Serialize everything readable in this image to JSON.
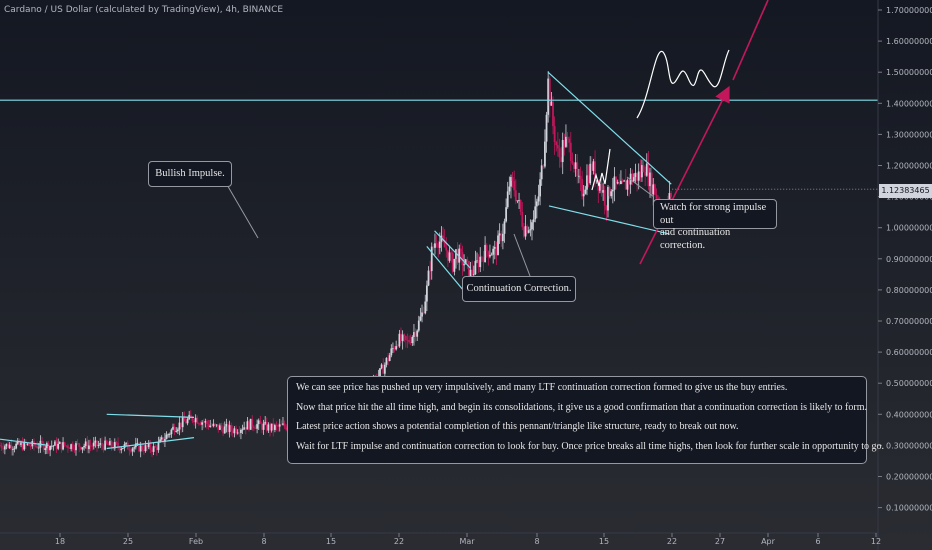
{
  "header": {
    "title": "Cardano / US Dollar (calculated by TradingView), 4h, BINANCE"
  },
  "price_label": "1.12383465",
  "annotations": {
    "bullish_impulse": "Bullish Impulse.",
    "continuation_correction": "Continuation Correction.",
    "watch": [
      "Watch for strong impulse out",
      "and continuation correction."
    ]
  },
  "note": {
    "lines": [
      "We can see price has pushed up very impulsively, and many LTF continuation correction formed to  give us the buy entries.",
      "Now that price hit the all time high, and begin its consolidations, it give us a good confirmation that a continuation correction is likely to form.",
      "Latest price action shows a potential  completion of this pennant/triangle like structure, ready to break out now.",
      "Wait for LTF impulse and continuation correction to look for buy. Once price breaks all time highs, then look for further scale in opportunity to go."
    ]
  },
  "colors": {
    "background": "#131722",
    "up_candle": "#d1d4dc",
    "down_candle": "#c2185b",
    "trendline": "#80deea",
    "axis_text": "#b2b5be",
    "projection_arrow": "#c2185b"
  },
  "chart_data": {
    "type": "candlestick",
    "title": "Cardano / US Dollar (calculated by TradingView), 4h, BINANCE",
    "y_ticks": [
      "1.70000000",
      "1.60000000",
      "1.50000000",
      "1.40000000",
      "1.30000000",
      "1.20000000",
      "1.10000000",
      "1.00000000",
      "0.90000000",
      "0.80000000",
      "0.70000000",
      "0.60000000",
      "0.50000000",
      "0.40000000",
      "0.30000000",
      "0.20000000",
      "0.10000000"
    ],
    "x_ticks": [
      "18",
      "25",
      "Feb",
      "8",
      "15",
      "22",
      "Mar",
      "8",
      "15",
      "22",
      "27",
      "Apr",
      "6",
      "12"
    ],
    "ylim": [
      0.05,
      1.75
    ],
    "last_price": 1.12383465,
    "horizontal_level": 1.41,
    "close_path": [
      [
        11,
        0.3
      ],
      [
        16,
        0.29
      ],
      [
        18,
        0.36
      ],
      [
        20,
        0.39
      ],
      [
        22,
        0.36
      ],
      [
        24,
        0.35
      ],
      [
        26,
        0.37
      ],
      [
        28,
        0.355
      ],
      [
        29,
        0.36
      ],
      [
        31,
        0.37
      ],
      [
        33,
        0.4
      ],
      [
        36,
        0.44
      ],
      [
        37,
        0.47
      ],
      [
        38,
        0.5
      ],
      [
        39,
        0.52
      ],
      [
        40,
        0.58
      ],
      [
        41,
        0.64
      ],
      [
        42,
        0.63
      ],
      [
        43,
        0.68
      ],
      [
        43.5,
        0.72
      ],
      [
        44,
        0.8
      ],
      [
        44.5,
        0.92
      ],
      [
        45,
        0.97
      ],
      [
        46,
        0.93
      ],
      [
        46.7,
        0.88
      ],
      [
        47,
        0.92
      ],
      [
        48,
        0.88
      ],
      [
        48.5,
        0.85
      ],
      [
        49,
        0.87
      ],
      [
        49.6,
        0.91
      ],
      [
        50.3,
        0.93
      ],
      [
        51,
        0.92
      ],
      [
        51.5,
        0.96
      ],
      [
        52,
        1.01
      ],
      [
        52.5,
        1.14
      ],
      [
        53,
        1.13
      ],
      [
        53.5,
        1.07
      ],
      [
        54,
        1.0
      ],
      [
        55,
        1.02
      ],
      [
        55.5,
        1.1
      ],
      [
        56,
        1.22
      ],
      [
        56.5,
        1.47
      ],
      [
        57,
        1.33
      ],
      [
        57.6,
        1.22
      ],
      [
        58.2,
        1.28
      ],
      [
        59,
        1.24
      ],
      [
        59.5,
        1.15
      ],
      [
        60,
        1.12
      ],
      [
        60.5,
        1.16
      ],
      [
        61,
        1.2
      ],
      [
        61.5,
        1.16
      ],
      [
        62,
        1.13
      ],
      [
        62.5,
        1.08
      ],
      [
        63,
        1.14
      ],
      [
        64,
        1.12
      ],
      [
        65,
        1.16
      ],
      [
        66,
        1.17
      ],
      [
        66.4,
        1.21
      ],
      [
        67,
        1.15
      ],
      [
        67.5,
        1.12
      ],
      [
        68,
        1.07
      ],
      [
        68.3,
        1.04
      ],
      [
        68.6,
        1.06
      ],
      [
        69,
        1.09
      ],
      [
        69.3,
        1.12
      ]
    ],
    "trendlines": [
      {
        "name": "ltf-1",
        "points": [
          [
            0,
            0.32
          ],
          [
            5,
            0.3
          ]
        ]
      },
      {
        "name": "ltf-2-top",
        "points": [
          [
            11,
            0.4
          ],
          [
            20,
            0.39
          ]
        ]
      },
      {
        "name": "ltf-2-bot",
        "points": [
          [
            11,
            0.29
          ],
          [
            20,
            0.325
          ]
        ]
      },
      {
        "name": "ltf-3-top",
        "points": [
          [
            44.8,
            0.99
          ],
          [
            48.5,
            0.87
          ]
        ]
      },
      {
        "name": "ltf-3-bot",
        "points": [
          [
            44,
            0.94
          ],
          [
            48,
            0.79
          ]
        ]
      },
      {
        "name": "pennant-top",
        "points": [
          [
            56.5,
            1.5
          ],
          [
            69.2,
            1.14
          ]
        ]
      },
      {
        "name": "pennant-bot",
        "points": [
          [
            56.6,
            1.07
          ],
          [
            69,
            0.98
          ]
        ]
      }
    ]
  }
}
